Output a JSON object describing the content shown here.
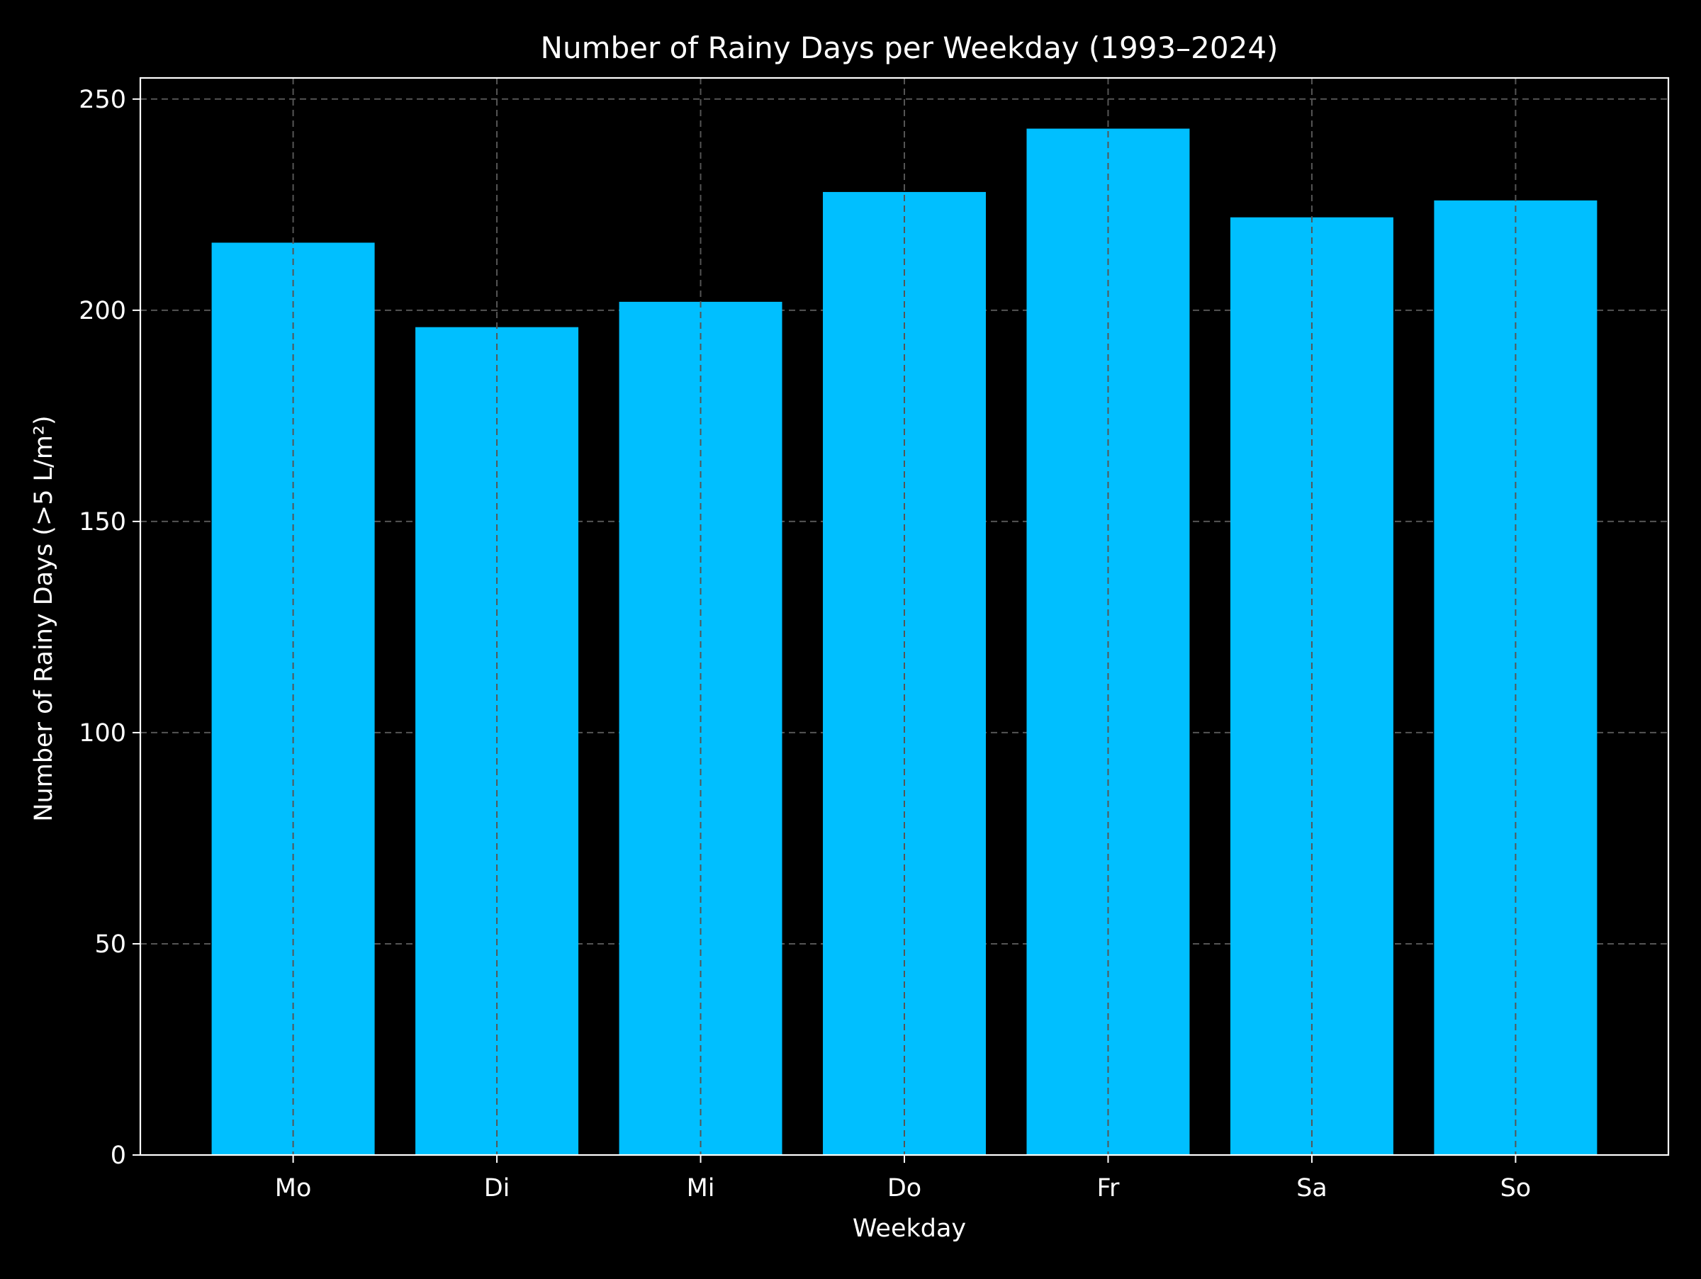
{
  "chart_data": {
    "type": "bar",
    "title": "Number of Rainy Days per Weekday (1993–2024)",
    "xlabel": "Weekday",
    "ylabel": "Number of Rainy Days (>5 L/m²)",
    "categories": [
      "Mo",
      "Di",
      "Mi",
      "Do",
      "Fr",
      "Sa",
      "So"
    ],
    "values": [
      216,
      196,
      202,
      228,
      243,
      222,
      226
    ],
    "ylim": [
      0,
      255
    ],
    "yticks": [
      0,
      50,
      100,
      150,
      200,
      250
    ],
    "grid": true,
    "grid_style": "dashed",
    "legend": false,
    "colors": {
      "bar": "#00BFFF",
      "background": "#000000",
      "text": "#ffffff",
      "axis": "#ffffff",
      "grid": "#555555"
    }
  }
}
